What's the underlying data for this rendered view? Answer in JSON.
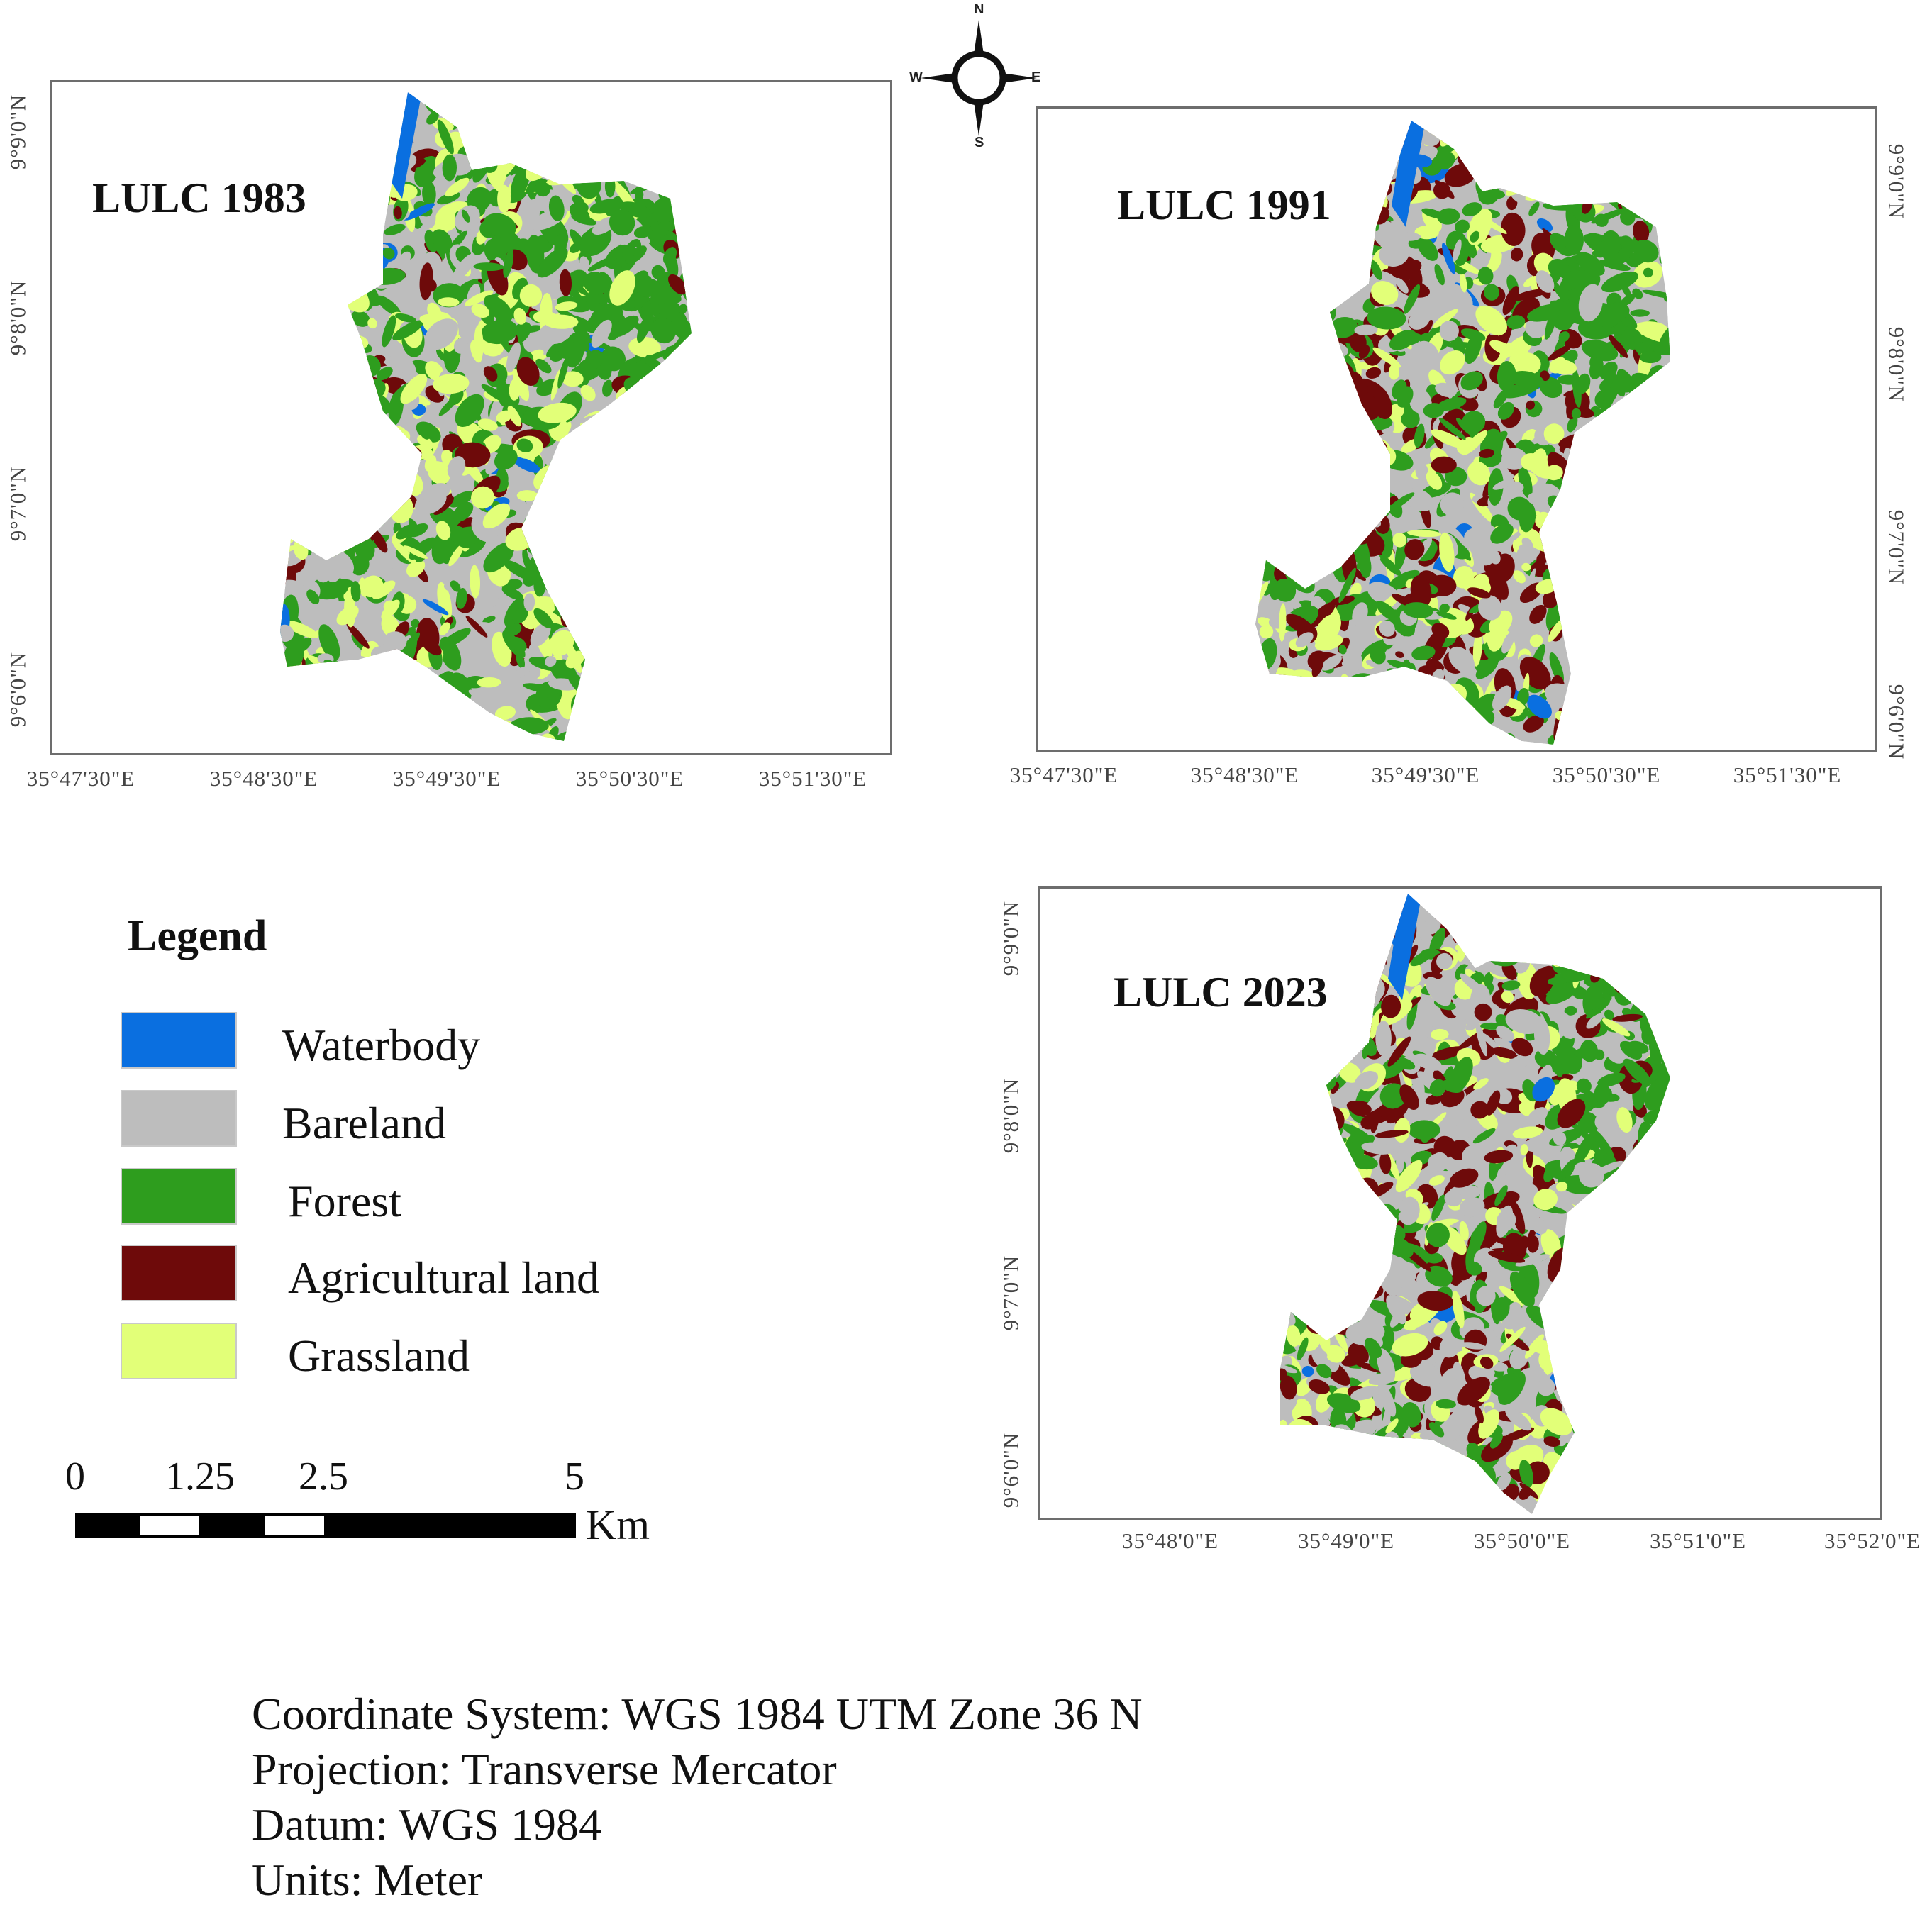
{
  "compass": {
    "n": "N",
    "s": "S",
    "e": "E",
    "w": "W"
  },
  "maps": [
    {
      "id": "1983",
      "title": "LULC 1983",
      "x_ticks": [
        "35°47'30\"E",
        "35°48'30\"E",
        "35°49'30\"E",
        "35°50'30\"E",
        "35°51'30\"E"
      ],
      "y_ticks": [
        "9°9'0\"N",
        "9°8'0\"N",
        "9°7'0\"N",
        "9°6'0\"N"
      ],
      "dominant_colors": [
        "#2f9e1f",
        "#e4ff72",
        "#b3b3b3",
        "#6b0f0f",
        "#1f6fe0"
      ]
    },
    {
      "id": "1991",
      "title": "LULC 1991",
      "x_ticks": [
        "35°47'30\"E",
        "35°48'30\"E",
        "35°49'30\"E",
        "35°50'30\"E",
        "35°51'30\"E"
      ],
      "y_ticks": [
        "9°9'0\"N",
        "9°8'0\"N",
        "9°7'0\"N",
        "9°6'0\"N"
      ],
      "dominant_colors": [
        "#2f9e1f",
        "#e4ff72",
        "#b3b3b3",
        "#6b0f0f",
        "#1f6fe0"
      ]
    },
    {
      "id": "2023",
      "title": "LULC 2023",
      "x_ticks": [
        "35°48'0\"E",
        "35°49'0\"E",
        "35°50'0\"E",
        "35°51'0\"E",
        "35°52'0\"E"
      ],
      "y_ticks": [
        "9°9'0\"N",
        "9°8'0\"N",
        "9°7'0\"N",
        "9°6'0\"N"
      ],
      "dominant_colors": [
        "#b3b3b3",
        "#6b0f0f",
        "#2f9e1f",
        "#e4ff72",
        "#1f6fe0"
      ]
    }
  ],
  "legend": {
    "title": "Legend",
    "items": [
      {
        "label": "Waterbody",
        "color": "#0a6fe0"
      },
      {
        "label": "Bareland",
        "color": "#bdbdbd"
      },
      {
        "label": "Forest",
        "color": "#2e9d1e"
      },
      {
        "label": "Agricultural land",
        "color": "#6e0a0a"
      },
      {
        "label": "Grassland",
        "color": "#e2ff78"
      }
    ]
  },
  "scale_bar": {
    "labels": [
      "0",
      "1.25",
      "2.5",
      "5"
    ],
    "unit": "Km"
  },
  "metadata": {
    "coordinate_system": "Coordinate System: WGS 1984 UTM Zone  36 N",
    "projection": "Projection: Transverse Mercator",
    "datum": "Datum: WGS 1984",
    "units": "Units: Meter"
  }
}
